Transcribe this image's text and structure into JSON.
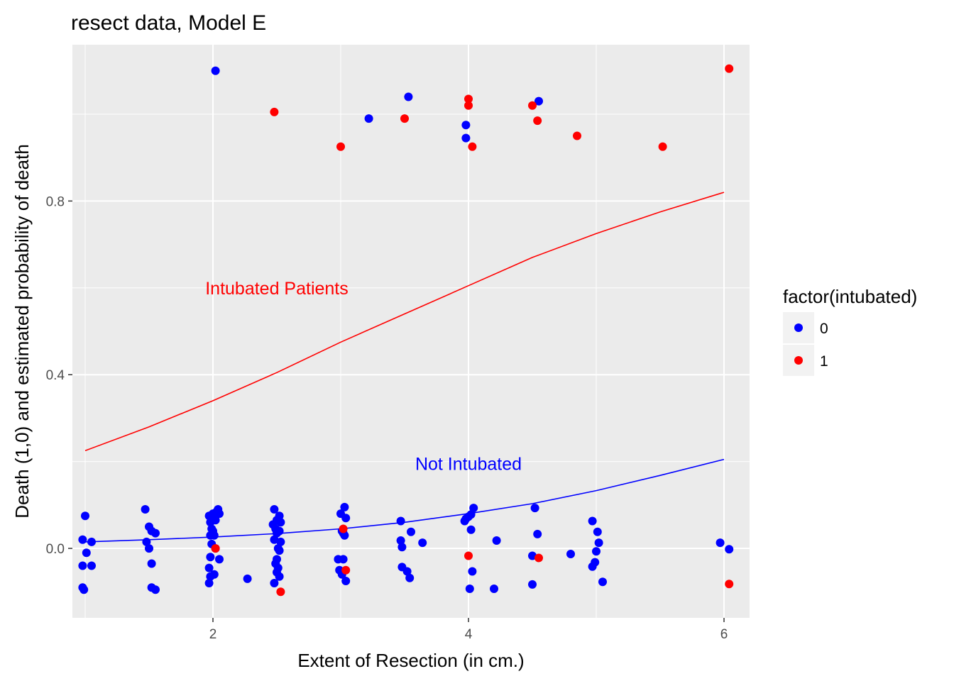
{
  "chart_data": {
    "type": "scatter",
    "title": "resect data, Model E",
    "xlabel": "Extent of Resection (in cm.)",
    "ylabel": "Death (1,0) and estimated probability of death",
    "xlim": [
      0.9,
      6.2
    ],
    "ylim": [
      -0.16,
      1.16
    ],
    "x_ticks": [
      {
        "value": 2,
        "label": "2"
      },
      {
        "value": 4,
        "label": "4"
      },
      {
        "value": 6,
        "label": "6"
      }
    ],
    "y_ticks": [
      {
        "value": 0.0,
        "label": "0.0"
      },
      {
        "value": 0.4,
        "label": "0.4"
      },
      {
        "value": 0.8,
        "label": "0.8"
      }
    ],
    "grid": true,
    "panel_color": "#ebebeb",
    "legend": {
      "title": "factor(intubated)",
      "placement": "right",
      "entries": [
        {
          "label": "0",
          "color": "#0000ff"
        },
        {
          "label": "1",
          "color": "#ff0000"
        }
      ]
    },
    "annotations": [
      {
        "text": "Intubated Patients",
        "x": 2.5,
        "y": 0.6,
        "color": "#ff0000"
      },
      {
        "text": "Not Intubated",
        "x": 4.0,
        "y": 0.195,
        "color": "#0000ff"
      }
    ],
    "series": [
      {
        "group": "0",
        "color": "#0000ff",
        "points": [
          [
            2.02,
            1.1
          ],
          [
            3.53,
            1.04
          ],
          [
            4.55,
            1.03
          ],
          [
            3.22,
            0.99
          ],
          [
            3.98,
            0.975
          ],
          [
            3.98,
            0.945
          ],
          [
            1.0,
            0.075
          ],
          [
            0.98,
            0.02
          ],
          [
            1.05,
            0.015
          ],
          [
            1.01,
            -0.01
          ],
          [
            0.98,
            -0.04
          ],
          [
            1.05,
            -0.04
          ],
          [
            0.98,
            -0.09
          ],
          [
            0.99,
            -0.095
          ],
          [
            1.47,
            0.09
          ],
          [
            1.5,
            0.05
          ],
          [
            1.52,
            0.04
          ],
          [
            1.55,
            0.035
          ],
          [
            1.48,
            0.015
          ],
          [
            1.5,
            0.0
          ],
          [
            1.52,
            -0.035
          ],
          [
            1.52,
            -0.09
          ],
          [
            1.55,
            -0.095
          ],
          [
            1.97,
            0.075
          ],
          [
            2.0,
            0.08
          ],
          [
            2.03,
            0.085
          ],
          [
            2.05,
            0.08
          ],
          [
            2.04,
            0.09
          ],
          [
            1.98,
            0.06
          ],
          [
            2.02,
            0.065
          ],
          [
            1.99,
            0.045
          ],
          [
            2.0,
            0.04
          ],
          [
            2.01,
            0.03
          ],
          [
            1.98,
            0.03
          ],
          [
            2.02,
            0.0
          ],
          [
            1.99,
            0.01
          ],
          [
            2.05,
            -0.025
          ],
          [
            1.98,
            -0.02
          ],
          [
            1.97,
            -0.045
          ],
          [
            2.01,
            -0.06
          ],
          [
            1.98,
            -0.065
          ],
          [
            1.97,
            -0.08
          ],
          [
            2.27,
            -0.07
          ],
          [
            2.48,
            0.09
          ],
          [
            2.52,
            0.075
          ],
          [
            2.5,
            0.065
          ],
          [
            2.47,
            0.055
          ],
          [
            2.53,
            0.06
          ],
          [
            2.49,
            0.045
          ],
          [
            2.5,
            0.035
          ],
          [
            2.52,
            0.04
          ],
          [
            2.48,
            0.02
          ],
          [
            2.53,
            0.015
          ],
          [
            2.51,
            0.0
          ],
          [
            2.52,
            -0.005
          ],
          [
            2.5,
            -0.025
          ],
          [
            2.49,
            -0.035
          ],
          [
            2.51,
            -0.045
          ],
          [
            2.5,
            -0.055
          ],
          [
            2.52,
            -0.065
          ],
          [
            2.48,
            -0.08
          ],
          [
            3.03,
            0.095
          ],
          [
            3.0,
            0.08
          ],
          [
            3.04,
            0.07
          ],
          [
            3.01,
            0.04
          ],
          [
            3.02,
            0.035
          ],
          [
            3.03,
            0.03
          ],
          [
            2.98,
            -0.025
          ],
          [
            3.02,
            -0.025
          ],
          [
            2.99,
            -0.05
          ],
          [
            3.01,
            -0.06
          ],
          [
            3.04,
            -0.075
          ],
          [
            3.47,
            0.063
          ],
          [
            3.47,
            0.018
          ],
          [
            3.48,
            0.003
          ],
          [
            3.55,
            0.038
          ],
          [
            3.64,
            0.013
          ],
          [
            3.48,
            -0.043
          ],
          [
            3.52,
            -0.053
          ],
          [
            3.54,
            -0.068
          ],
          [
            3.97,
            0.063
          ],
          [
            4.0,
            0.073
          ],
          [
            4.02,
            0.078
          ],
          [
            3.98,
            0.068
          ],
          [
            4.04,
            0.093
          ],
          [
            4.02,
            0.043
          ],
          [
            4.03,
            -0.053
          ],
          [
            4.01,
            -0.093
          ],
          [
            4.2,
            -0.093
          ],
          [
            4.22,
            0.018
          ],
          [
            4.52,
            0.093
          ],
          [
            4.54,
            0.033
          ],
          [
            4.5,
            -0.017
          ],
          [
            4.5,
            -0.083
          ],
          [
            4.8,
            -0.013
          ],
          [
            4.97,
            0.063
          ],
          [
            5.01,
            0.038
          ],
          [
            5.02,
            0.013
          ],
          [
            5.0,
            -0.007
          ],
          [
            4.99,
            -0.032
          ],
          [
            4.97,
            -0.042
          ],
          [
            5.05,
            -0.077
          ],
          [
            5.97,
            0.013
          ],
          [
            6.04,
            -0.002
          ]
        ]
      },
      {
        "group": "1",
        "color": "#ff0000",
        "points": [
          [
            2.48,
            1.005
          ],
          [
            3.0,
            0.925
          ],
          [
            3.5,
            0.99
          ],
          [
            4.0,
            1.035
          ],
          [
            4.0,
            1.02
          ],
          [
            4.03,
            0.925
          ],
          [
            4.5,
            1.02
          ],
          [
            4.54,
            0.985
          ],
          [
            4.85,
            0.95
          ],
          [
            5.52,
            0.925
          ],
          [
            6.04,
            1.105
          ],
          [
            2.02,
            0.0
          ],
          [
            2.53,
            -0.1
          ],
          [
            3.02,
            0.045
          ],
          [
            3.04,
            -0.05
          ],
          [
            4.0,
            -0.017
          ],
          [
            4.55,
            -0.022
          ],
          [
            6.04,
            -0.082
          ]
        ]
      }
    ],
    "curves": [
      {
        "group": "1",
        "color": "#ff0000",
        "x": [
          1.0,
          1.5,
          2.0,
          2.5,
          3.0,
          3.5,
          4.0,
          4.5,
          5.0,
          5.5,
          6.0
        ],
        "y": [
          0.225,
          0.28,
          0.34,
          0.405,
          0.475,
          0.54,
          0.605,
          0.67,
          0.725,
          0.775,
          0.82
        ]
      },
      {
        "group": "0",
        "color": "#0000ff",
        "x": [
          1.0,
          1.5,
          2.0,
          2.5,
          3.0,
          3.5,
          4.0,
          4.5,
          5.0,
          5.5,
          6.0
        ],
        "y": [
          0.015,
          0.02,
          0.026,
          0.034,
          0.045,
          0.06,
          0.08,
          0.103,
          0.133,
          0.168,
          0.205
        ]
      }
    ]
  }
}
